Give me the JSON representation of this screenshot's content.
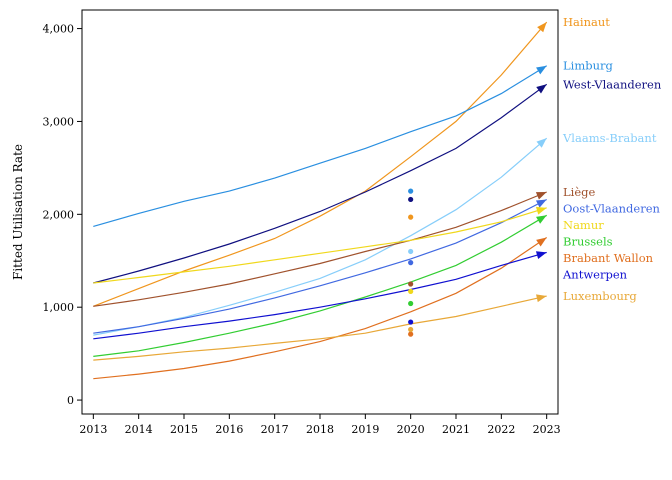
{
  "chart_data": {
    "type": "line",
    "title": "",
    "xlabel": "",
    "ylabel": "Fitted Utilisation Rate",
    "x": [
      2013,
      2014,
      2015,
      2016,
      2017,
      2018,
      2019,
      2020,
      2021,
      2022,
      2023
    ],
    "xlim": [
      2012.75,
      2023.25
    ],
    "ylim": [
      -150,
      4200
    ],
    "yticks": [
      0,
      1000,
      2000,
      3000,
      4000
    ],
    "ytick_labels": [
      "0",
      "1,000",
      "2,000",
      "3,000",
      "4,000"
    ],
    "grid": false,
    "legend": "labels at line ends, right",
    "point_x": 2020,
    "series": [
      {
        "name": "Hainaut",
        "color": "#F0961E",
        "values": [
          1010,
          1200,
          1390,
          1560,
          1740,
          1980,
          2250,
          2620,
          3000,
          3500,
          4070
        ],
        "point": 1970
      },
      {
        "name": "Limburg",
        "color": "#2A8FE0",
        "values": [
          1870,
          2010,
          2140,
          2250,
          2390,
          2550,
          2710,
          2890,
          3060,
          3300,
          3600
        ],
        "point": 2250
      },
      {
        "name": "West-Vlaanderen",
        "color": "#101080",
        "values": [
          1260,
          1390,
          1530,
          1680,
          1850,
          2030,
          2240,
          2470,
          2710,
          3040,
          3400
        ],
        "point": 2160
      },
      {
        "name": "Vlaams-Brabant",
        "color": "#87CEFA",
        "values": [
          700,
          790,
          890,
          1020,
          1160,
          1310,
          1510,
          1770,
          2050,
          2400,
          2820
        ],
        "point": 1600
      },
      {
        "name": "Liège",
        "color": "#A0522D",
        "values": [
          1010,
          1080,
          1160,
          1250,
          1360,
          1470,
          1600,
          1720,
          1860,
          2040,
          2240
        ],
        "point": 1250
      },
      {
        "name": "Oost-Vlaanderen",
        "color": "#4169E1",
        "values": [
          720,
          790,
          880,
          980,
          1100,
          1230,
          1370,
          1520,
          1690,
          1910,
          2160
        ],
        "point": 1480
      },
      {
        "name": "Namur",
        "color": "#F0D81C",
        "values": [
          1260,
          1320,
          1380,
          1440,
          1510,
          1580,
          1650,
          1720,
          1810,
          1920,
          2070
        ],
        "point": 1170
      },
      {
        "name": "Brussels",
        "color": "#32CD32",
        "values": [
          470,
          530,
          620,
          720,
          830,
          960,
          1110,
          1270,
          1450,
          1700,
          1990
        ],
        "point": 1040
      },
      {
        "name": "Brabant Wallon",
        "color": "#E07020",
        "values": [
          230,
          280,
          340,
          420,
          520,
          630,
          770,
          950,
          1150,
          1420,
          1750
        ],
        "point": 710
      },
      {
        "name": "Antwerpen",
        "color": "#1010D0",
        "values": [
          660,
          720,
          790,
          850,
          920,
          1000,
          1090,
          1190,
          1300,
          1450,
          1590
        ],
        "point": 840
      },
      {
        "name": "Luxembourg",
        "color": "#E8A838",
        "values": [
          430,
          470,
          520,
          560,
          610,
          660,
          720,
          820,
          900,
          1010,
          1120
        ],
        "point": 760
      }
    ]
  }
}
